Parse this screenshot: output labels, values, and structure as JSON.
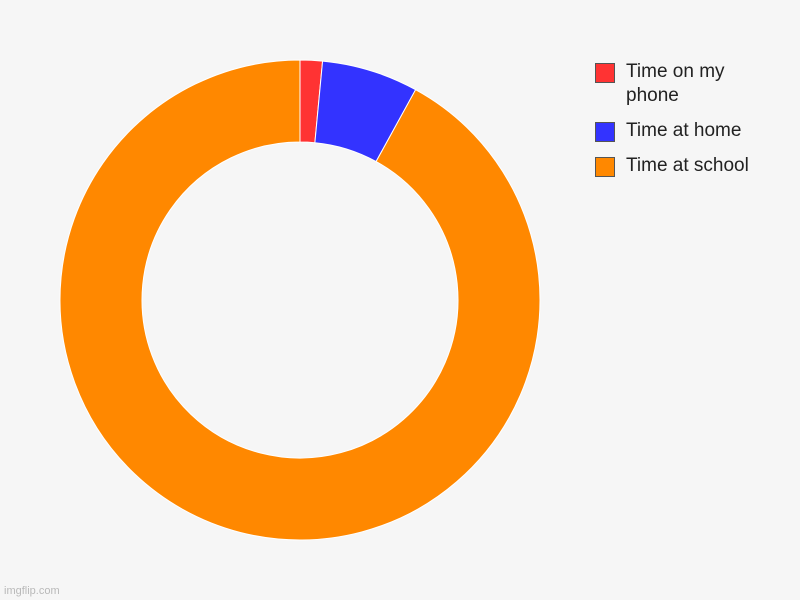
{
  "chart_data": {
    "type": "pie",
    "variant": "donut",
    "categories": [
      "Time on my phone",
      "Time at home",
      "Time at school"
    ],
    "values": [
      1.5,
      6.5,
      92
    ],
    "unit": "%",
    "colors": [
      "#ff3333",
      "#3333ff",
      "#ff8800"
    ],
    "legend_position": "top-right",
    "start_angle": "12 o'clock",
    "direction": "clockwise"
  },
  "legend": {
    "items": [
      {
        "label": "Time on my phone",
        "color": "#ff3333"
      },
      {
        "label": "Time at home",
        "color": "#3333ff"
      },
      {
        "label": "Time at school",
        "color": "#ff8800"
      }
    ]
  },
  "watermark": "imgflip.com"
}
